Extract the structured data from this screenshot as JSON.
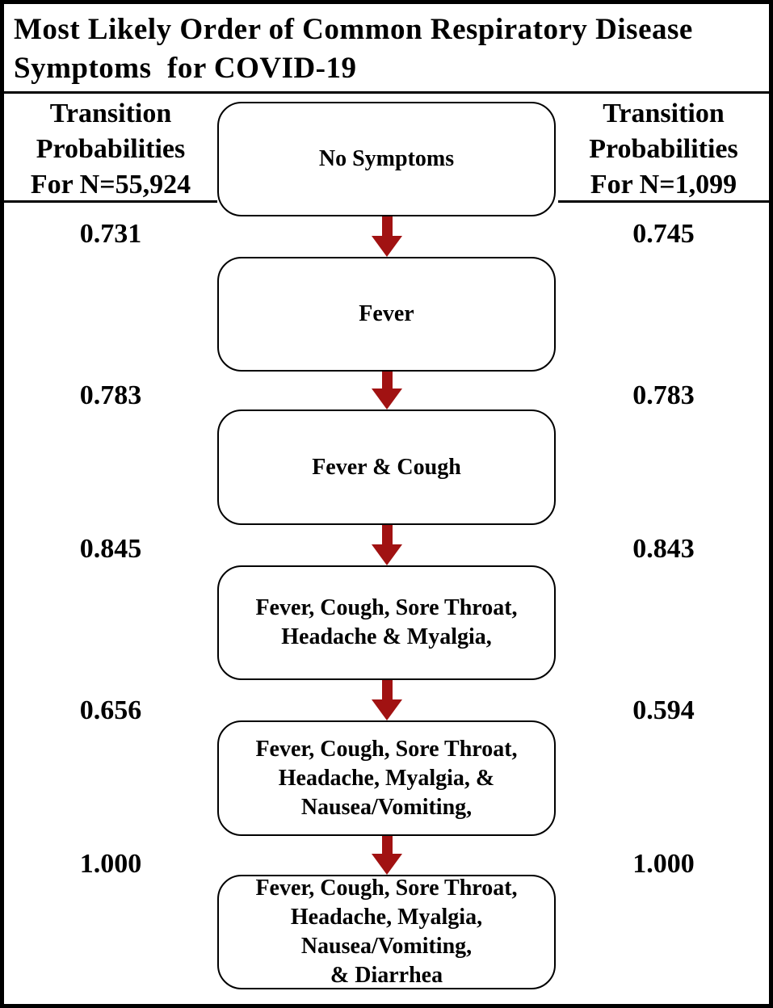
{
  "title": "Most Likely Order of Common Respiratory Disease\nSymptoms  for COVID-19",
  "left_column": {
    "header": "Transition\nProbabilities\nFor N=55,924",
    "values": [
      "0.731",
      "0.783",
      "0.845",
      "0.656",
      "1.000"
    ]
  },
  "right_column": {
    "header": "Transition\nProbabilities\nFor N=1,099",
    "values": [
      "0.745",
      "0.783",
      "0.843",
      "0.594",
      "1.000"
    ]
  },
  "flow": {
    "boxes": [
      {
        "label": "No Symptoms"
      },
      {
        "label": "Fever"
      },
      {
        "label": "Fever & Cough"
      },
      {
        "label": "Fever, Cough, Sore Throat,\nHeadache & Myalgia,"
      },
      {
        "label": "Fever, Cough, Sore Throat,\nHeadache, Myalgia, &\nNausea/Vomiting,"
      },
      {
        "label": "Fever, Cough, Sore Throat,\nHeadache, Myalgia,\nNausea/Vomiting,\n& Diarrhea"
      }
    ]
  },
  "colors": {
    "arrow_red": "#a11212",
    "frame_black": "#000000",
    "background": "#ffffff",
    "text": "#000000"
  }
}
